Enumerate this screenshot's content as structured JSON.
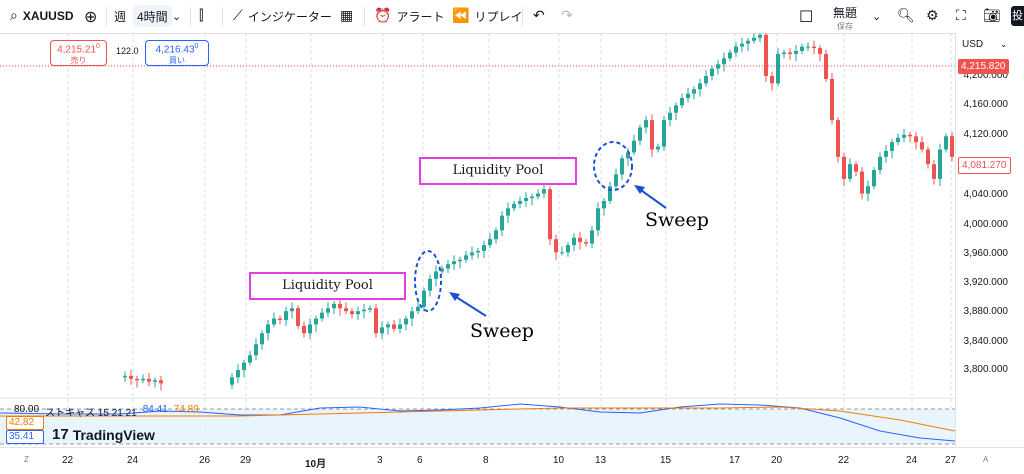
{
  "toolbar": {
    "symbol": "XAUUSD",
    "interval_week": "週",
    "interval_active": "4時間",
    "indicators": "インジケーター",
    "alert": "アラート",
    "replay": "リプレイ",
    "layout_name": "無題",
    "save": "保存",
    "corner": "投"
  },
  "prices": {
    "sell": "4,215.21",
    "sell_sup": "0",
    "sell_label": "売り",
    "spread": "122.0",
    "buy": "4,216.43",
    "buy_sup": "0",
    "buy_label": "買い"
  },
  "axis": {
    "currency": "USD",
    "ticks": [
      "4,200.000",
      "4,160.000",
      "4,120.000",
      "4,080.000",
      "4,040.000",
      "4,000.000",
      "3,960.000",
      "3,920.000",
      "3,880.000",
      "3,840.000",
      "3,800.000"
    ],
    "current_price": "4,215.820",
    "last_price": "4,081.270"
  },
  "time_axis": {
    "zone": "Z",
    "labels": [
      "22",
      "24",
      "26",
      "29",
      "10月",
      "3",
      "6",
      "8",
      "10",
      "13",
      "15",
      "17",
      "20",
      "22",
      "24",
      "27"
    ],
    "auto": "A"
  },
  "oscillator": {
    "level_80": "80.00",
    "name": "ストキャス 15 21 21",
    "k": "84.41",
    "d": "74.89",
    "v1": "42.82",
    "v2": "35.41"
  },
  "logo": "TradingView",
  "annotations": {
    "pool1": "Liquidity Pool",
    "pool2": "Liquidity Pool",
    "sweep1": "Sweep",
    "sweep2": "Sweep"
  },
  "colors": {
    "up": "#26a69a",
    "down": "#ef5350",
    "pool_border": "#e040e0",
    "sweep_arrow": "#1a4fd6",
    "stoch_k": "#2962ff",
    "stoch_d": "#f57c00"
  }
}
